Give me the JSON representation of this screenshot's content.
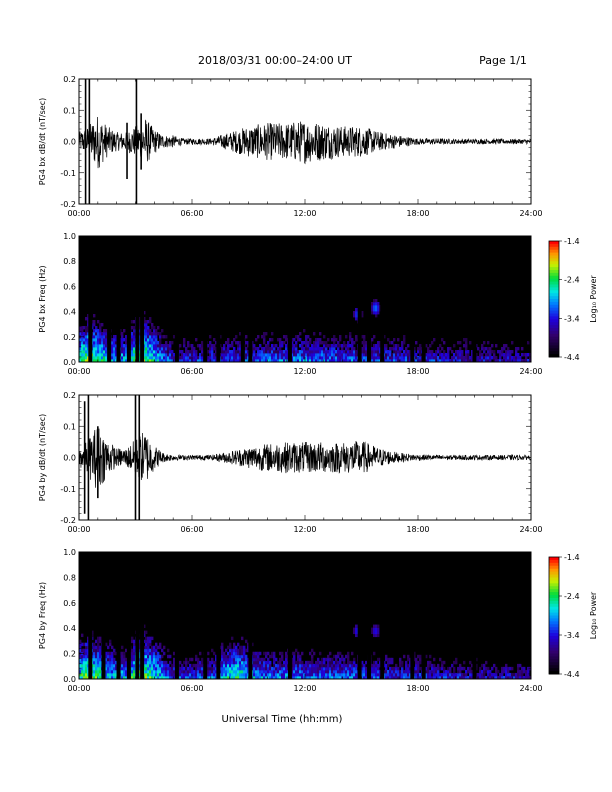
{
  "header": {
    "title": "2018/03/31   00:00–24:00 UT",
    "page": "Page 1/1"
  },
  "xlabel": "Universal Time (hh:mm)",
  "x_ticks": [
    "00:00",
    "06:00",
    "12:00",
    "18:00",
    "24:00"
  ],
  "colorbar": {
    "label": "Log₁₀ Power",
    "ticks": [
      "-1.4",
      "-2.4",
      "-3.4",
      "-4.4"
    ],
    "range": [
      -4.4,
      -1.4
    ]
  },
  "chart_data": [
    {
      "type": "line",
      "ylabel": "PG4 bx dB/dt (nT/sec)",
      "xlim": [
        0,
        24
      ],
      "ylim": [
        -0.2,
        0.2
      ],
      "y_ticks": [
        "0.2",
        "0.1",
        "0.0",
        "-0.1",
        "-0.2"
      ],
      "envelope": {
        "hours": [
          0,
          0.5,
          1.0,
          1.5,
          2.0,
          2.5,
          3.0,
          3.5,
          4.0,
          4.5,
          5.0,
          5.5,
          6.0,
          7.0,
          8.0,
          9.0,
          10.0,
          11.0,
          12.0,
          13.0,
          14.0,
          15.0,
          16.0,
          17.0,
          18.0,
          19.0,
          20.0,
          21.0,
          22.0,
          23.0,
          24.0
        ],
        "amplitude": [
          0.03,
          0.05,
          0.09,
          0.05,
          0.03,
          0.03,
          0.05,
          0.08,
          0.04,
          0.02,
          0.02,
          0.01,
          0.01,
          0.01,
          0.03,
          0.05,
          0.06,
          0.06,
          0.07,
          0.06,
          0.05,
          0.05,
          0.03,
          0.02,
          0.01,
          0.01,
          0.008,
          0.008,
          0.008,
          0.008,
          0.008
        ]
      },
      "spikes": [
        {
          "hour": 0.35,
          "min": -0.2,
          "max": 0.2
        },
        {
          "hour": 0.55,
          "min": -0.2,
          "max": 0.2
        },
        {
          "hour": 2.55,
          "min": -0.12,
          "max": 0.06
        },
        {
          "hour": 3.05,
          "min": -0.2,
          "max": 0.2
        },
        {
          "hour": 3.3,
          "min": -0.09,
          "max": 0.09
        }
      ]
    },
    {
      "type": "heatmap",
      "ylabel": "PG4 bx Freq (Hz)",
      "xlim": [
        0,
        24
      ],
      "ylim": [
        0,
        1.0
      ],
      "y_ticks": [
        "1.0",
        "0.8",
        "0.6",
        "0.4",
        "0.2",
        "0.0"
      ],
      "profile": {
        "hours": [
          0,
          0.5,
          1.0,
          1.5,
          2.0,
          2.5,
          3.0,
          3.5,
          4.0,
          4.5,
          5.0,
          6.0,
          8.0,
          10.0,
          12.0,
          14.0,
          15.0,
          16.0,
          18.0,
          20.0,
          22.0,
          24.0
        ],
        "level": [
          -3.0,
          -2.6,
          -2.8,
          -3.2,
          -3.3,
          -3.3,
          -2.7,
          -2.6,
          -3.0,
          -3.5,
          -3.8,
          -3.8,
          -3.7,
          -3.6,
          -3.5,
          -3.6,
          -3.6,
          -3.7,
          -3.8,
          -3.9,
          -4.0,
          -4.0
        ]
      },
      "gaps_hours": [
        0.6,
        1.6,
        2.1,
        2.65,
        3.1,
        3.35,
        5.2,
        6.7,
        7.4,
        8.7,
        9.1,
        11.2,
        14.9,
        15.4,
        16.1,
        17.7,
        18.3,
        21.0
      ],
      "features": [
        {
          "hour": 14.8,
          "freq": 0.38,
          "level": -3.2
        },
        {
          "hour": 15.75,
          "freq": 0.43,
          "level": -3.1
        }
      ]
    },
    {
      "type": "line",
      "ylabel": "PG4 by dB/dt (nT/sec)",
      "xlim": [
        0,
        24
      ],
      "ylim": [
        -0.2,
        0.2
      ],
      "y_ticks": [
        "0.2",
        "0.1",
        "0.0",
        "-0.1",
        "-0.2"
      ],
      "envelope": {
        "hours": [
          0,
          0.5,
          1.0,
          1.5,
          2.0,
          2.5,
          3.0,
          3.5,
          4.0,
          4.5,
          5.0,
          5.5,
          6.0,
          7.0,
          8.0,
          9.0,
          10.0,
          11.0,
          12.0,
          13.0,
          14.0,
          15.0,
          16.0,
          17.0,
          18.0,
          19.0,
          20.0,
          21.0,
          22.0,
          23.0,
          24.0
        ],
        "amplitude": [
          0.03,
          0.06,
          0.11,
          0.06,
          0.03,
          0.03,
          0.06,
          0.09,
          0.04,
          0.015,
          0.01,
          0.008,
          0.008,
          0.008,
          0.02,
          0.035,
          0.045,
          0.05,
          0.05,
          0.05,
          0.05,
          0.055,
          0.03,
          0.015,
          0.01,
          0.008,
          0.008,
          0.008,
          0.008,
          0.008,
          0.008
        ]
      },
      "spikes": [
        {
          "hour": 0.3,
          "min": -0.18,
          "max": 0.18
        },
        {
          "hour": 0.5,
          "min": -0.2,
          "max": 0.2
        },
        {
          "hour": 1.0,
          "min": -0.13,
          "max": 0.1
        },
        {
          "hour": 3.0,
          "min": -0.2,
          "max": 0.2
        },
        {
          "hour": 3.2,
          "min": -0.2,
          "max": 0.2
        }
      ]
    },
    {
      "type": "heatmap",
      "ylabel": "PG4 by Freq (Hz)",
      "xlim": [
        0,
        24
      ],
      "ylim": [
        0,
        1.0
      ],
      "y_ticks": [
        "1.0",
        "0.8",
        "0.6",
        "0.4",
        "0.2",
        "0.0"
      ],
      "profile": {
        "hours": [
          0,
          0.5,
          1.0,
          1.5,
          2.0,
          2.5,
          3.0,
          3.5,
          4.0,
          4.5,
          5.0,
          6.0,
          7.0,
          8.0,
          8.5,
          9.0,
          10.0,
          12.0,
          14.0,
          15.0,
          16.0,
          18.0,
          20.0,
          22.0,
          24.0
        ],
        "level": [
          -3.0,
          -2.6,
          -2.8,
          -3.2,
          -3.3,
          -3.3,
          -2.7,
          -2.6,
          -2.9,
          -3.4,
          -3.7,
          -3.7,
          -3.6,
          -3.0,
          -2.9,
          -3.2,
          -3.5,
          -3.5,
          -3.6,
          -3.6,
          -3.7,
          -3.8,
          -3.9,
          -4.0,
          -4.0
        ]
      },
      "gaps_hours": [
        0.6,
        1.3,
        2.1,
        2.65,
        3.1,
        3.35,
        5.2,
        6.7,
        7.4,
        9.1,
        11.2,
        14.9,
        15.4,
        16.1,
        17.7,
        18.3,
        21.0
      ],
      "features": [
        {
          "hour": 14.8,
          "freq": 0.38,
          "level": -3.3
        },
        {
          "hour": 15.75,
          "freq": 0.38,
          "level": -3.4
        }
      ]
    }
  ]
}
